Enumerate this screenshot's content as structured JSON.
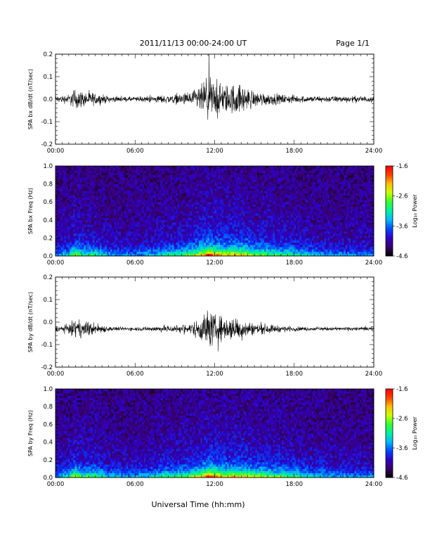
{
  "header": {
    "title": "2011/11/13  00:00-24:00 UT",
    "page": "Page 1/1"
  },
  "colors": {
    "trace": "#000000",
    "axis": "#000000",
    "background": "#ffffff"
  },
  "xaxis": {
    "label": "Universal Time (hh:mm)",
    "range": [
      0,
      24
    ],
    "ticks": [
      0,
      6,
      12,
      18,
      24
    ],
    "tick_labels": [
      "00:00",
      "06:00",
      "12:00",
      "18:00",
      "24:00"
    ]
  },
  "colorbar": {
    "label": "Log₁₀ Power",
    "range": [
      -4.6,
      -1.6
    ],
    "ticks": [
      -1.6,
      -2.6,
      -3.6,
      -4.6
    ],
    "tick_labels": [
      "-1.6",
      "-2.6",
      "-3.6",
      "-4.6"
    ],
    "palette": [
      "#000000",
      "#3a0068",
      "#2e00c8",
      "#0048ff",
      "#00b8ff",
      "#00f0a0",
      "#30ff30",
      "#c8ff00",
      "#ffc000",
      "#ff4000",
      "#ff0000"
    ]
  },
  "chart_data": [
    {
      "type": "line",
      "id": "bx",
      "ylabel": "SPA bx dB/dt (nT/sec)",
      "ylim": [
        -0.2,
        0.2
      ],
      "yticks": [
        -0.2,
        -0.1,
        0.0,
        0.1,
        0.2
      ],
      "ytick_labels": [
        "-0.2",
        "-0.1",
        "0.0",
        "0.1",
        "0.2"
      ],
      "offset": 0.0,
      "x": [
        0,
        1,
        1.5,
        2,
        3,
        4,
        5,
        6,
        7,
        8,
        9,
        10,
        10.5,
        11,
        11.5,
        12,
        12.5,
        13,
        13.5,
        14,
        14.5,
        15,
        16,
        17,
        18,
        19,
        20,
        21,
        22,
        23,
        24
      ],
      "amplitude": [
        0.02,
        0.03,
        0.07,
        0.05,
        0.04,
        0.02,
        0.015,
        0.015,
        0.02,
        0.025,
        0.03,
        0.04,
        0.06,
        0.09,
        0.15,
        0.12,
        0.1,
        0.09,
        0.1,
        0.09,
        0.07,
        0.05,
        0.04,
        0.03,
        0.025,
        0.02,
        0.02,
        0.02,
        0.02,
        0.02,
        0.02
      ]
    },
    {
      "type": "heatmap",
      "id": "bx_freq",
      "ylabel": "SPA bx Freq (Hz)",
      "ylim": [
        0.0,
        1.0
      ],
      "yticks": [
        0.0,
        0.2,
        0.4,
        0.6,
        0.8,
        1.0
      ],
      "ytick_labels": [
        "0.0",
        "0.2",
        "0.4",
        "0.6",
        "0.8",
        "1.0"
      ],
      "activity_x": [
        0,
        1,
        1.5,
        2,
        3,
        4,
        5,
        6,
        7,
        8,
        9,
        10,
        10.5,
        11,
        11.5,
        12,
        12.5,
        13,
        13.5,
        14,
        14.5,
        15,
        16,
        17,
        18,
        19,
        20,
        21,
        22,
        23,
        24
      ],
      "activity": [
        0.3,
        0.4,
        0.7,
        0.5,
        0.5,
        0.35,
        0.3,
        0.3,
        0.35,
        0.45,
        0.5,
        0.6,
        0.7,
        0.8,
        1.0,
        0.9,
        0.85,
        0.8,
        0.85,
        0.8,
        0.75,
        0.65,
        0.6,
        0.55,
        0.5,
        0.4,
        0.35,
        0.3,
        0.3,
        0.3,
        0.3
      ]
    },
    {
      "type": "line",
      "id": "by",
      "ylabel": "SPA by dB/dt (nT/sec)",
      "ylim": [
        -0.2,
        0.2
      ],
      "yticks": [
        -0.2,
        -0.1,
        0.0,
        0.1,
        0.2
      ],
      "ytick_labels": [
        "-0.2",
        "-0.1",
        "0.0",
        "0.1",
        "0.2"
      ],
      "offset": -0.03,
      "x": [
        0,
        1,
        1.5,
        2,
        3,
        4,
        5,
        6,
        7,
        8,
        9,
        10,
        10.5,
        11,
        11.5,
        12,
        12.5,
        13,
        13.5,
        14,
        14.5,
        15,
        16,
        17,
        18,
        19,
        20,
        21,
        22,
        23,
        24
      ],
      "amplitude": [
        0.015,
        0.03,
        0.06,
        0.05,
        0.04,
        0.015,
        0.012,
        0.012,
        0.015,
        0.02,
        0.025,
        0.03,
        0.05,
        0.08,
        0.13,
        0.09,
        0.08,
        0.07,
        0.08,
        0.07,
        0.05,
        0.035,
        0.03,
        0.02,
        0.015,
        0.012,
        0.012,
        0.012,
        0.012,
        0.012,
        0.012
      ]
    },
    {
      "type": "heatmap",
      "id": "by_freq",
      "ylabel": "SPA by Freq (Hz)",
      "ylim": [
        0.0,
        1.0
      ],
      "yticks": [
        0.0,
        0.2,
        0.4,
        0.6,
        0.8,
        1.0
      ],
      "ytick_labels": [
        "0.0",
        "0.2",
        "0.4",
        "0.6",
        "0.8",
        "1.0"
      ],
      "activity_x": [
        0,
        1,
        1.5,
        2,
        3,
        4,
        5,
        6,
        7,
        8,
        9,
        10,
        10.5,
        11,
        11.5,
        12,
        12.5,
        13,
        13.5,
        14,
        14.5,
        15,
        16,
        17,
        18,
        19,
        20,
        21,
        22,
        23,
        24
      ],
      "activity": [
        0.3,
        0.45,
        0.75,
        0.55,
        0.6,
        0.4,
        0.35,
        0.35,
        0.4,
        0.5,
        0.55,
        0.6,
        0.7,
        0.8,
        1.0,
        0.9,
        0.85,
        0.8,
        0.85,
        0.8,
        0.75,
        0.7,
        0.65,
        0.6,
        0.55,
        0.45,
        0.4,
        0.35,
        0.35,
        0.3,
        0.3
      ]
    }
  ]
}
